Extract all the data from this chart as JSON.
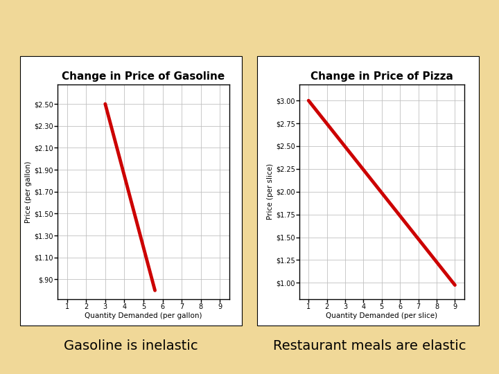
{
  "background_color": "#f0d898",
  "fig_width": 7.2,
  "fig_height": 5.4,
  "dpi": 100,
  "gasoline": {
    "title": "Change in Price of Gasoline",
    "xlabel": "Quantity Demanded (per gallon)",
    "ylabel": "Price (per gallon)",
    "xlim": [
      0.5,
      9.5
    ],
    "ylim": [
      0.72,
      2.68
    ],
    "xticks": [
      1,
      2,
      3,
      4,
      5,
      6,
      7,
      8,
      9
    ],
    "yticks": [
      0.9,
      1.1,
      1.3,
      1.5,
      1.7,
      1.9,
      2.1,
      2.3,
      2.5
    ],
    "ytick_labels": [
      "$.90",
      "$1.10",
      "$1.30",
      "$1.50",
      "$1.70",
      "$1.90",
      "$2.10",
      "$2.30",
      "$2.50"
    ],
    "line_x": [
      3.0,
      5.6
    ],
    "line_y": [
      2.5,
      0.8
    ],
    "line_color": "#cc0000",
    "line_width": 3.5
  },
  "pizza": {
    "title": "Change in Price of Pizza",
    "xlabel": "Quantity Demanded (per slice)",
    "ylabel": "Price (per slice)",
    "xlim": [
      0.5,
      9.5
    ],
    "ylim": [
      0.82,
      3.18
    ],
    "xticks": [
      1,
      2,
      3,
      4,
      5,
      6,
      7,
      8,
      9
    ],
    "yticks": [
      1.0,
      1.25,
      1.5,
      1.75,
      2.0,
      2.25,
      2.5,
      2.75,
      3.0
    ],
    "ytick_labels": [
      "$1.00",
      "$1.25",
      "$1.50",
      "$1.75",
      "$2.00",
      "$2.25",
      "$2.50",
      "$2.75",
      "$3.00"
    ],
    "line_x": [
      1.0,
      9.0
    ],
    "line_y": [
      3.0,
      0.975
    ],
    "line_color": "#cc0000",
    "line_width": 3.5
  },
  "caption_left": "Gasoline is inelastic",
  "caption_right": "Restaurant meals are elastic",
  "caption_fontsize": 14,
  "title_fontsize": 11,
  "axis_label_fontsize": 7.5,
  "tick_fontsize": 7,
  "grid_color": "#c0c0c0",
  "chart_bg": "#ffffff"
}
